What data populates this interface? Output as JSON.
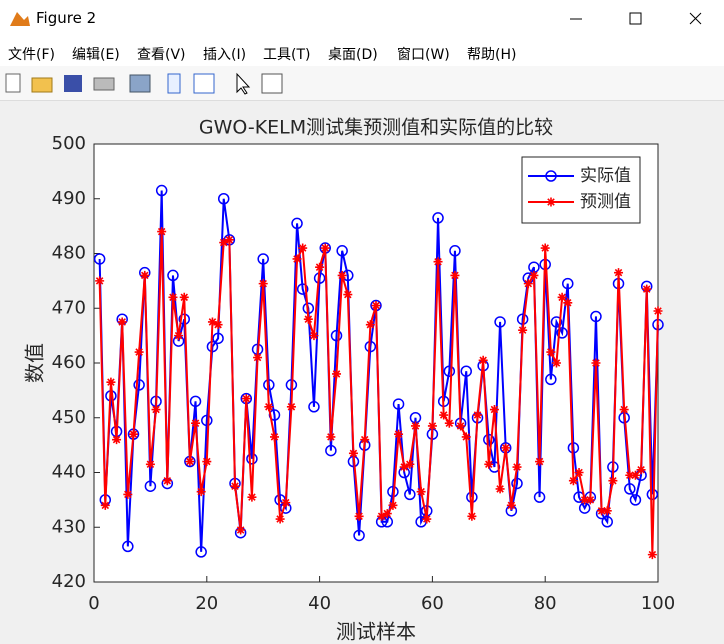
{
  "window": {
    "title": "Figure 2",
    "menu": [
      "文件(F)",
      "编辑(E)",
      "查看(V)",
      "插入(I)",
      "工具(T)",
      "桌面(D)",
      "窗口(W)",
      "帮助(H)"
    ]
  },
  "chart_data": {
    "type": "line",
    "title": "GWO-KELM测试集预测值和实际值的比较",
    "x_label": "测试样本",
    "y_label": "数值",
    "x": [
      1,
      2,
      3,
      4,
      5,
      6,
      7,
      8,
      9,
      10,
      11,
      12,
      13,
      14,
      15,
      16,
      17,
      18,
      19,
      20,
      21,
      22,
      23,
      24,
      25,
      26,
      27,
      28,
      29,
      30,
      31,
      32,
      33,
      34,
      35,
      36,
      37,
      38,
      39,
      40,
      41,
      42,
      43,
      44,
      45,
      46,
      47,
      48,
      49,
      50,
      51,
      52,
      53,
      54,
      55,
      56,
      57,
      58,
      59,
      60,
      61,
      62,
      63,
      64,
      65,
      66,
      67,
      68,
      69,
      70,
      71,
      72,
      73,
      74,
      75,
      76,
      77,
      78,
      79,
      80,
      81,
      82,
      83,
      84,
      85,
      86,
      87,
      88,
      89,
      90,
      91,
      92,
      93,
      94,
      95,
      96,
      97,
      98,
      99,
      100
    ],
    "series": [
      {
        "name": "实际值",
        "color": "#0000ff",
        "marker": "circle",
        "values": [
          479,
          435,
          454,
          447.5,
          468,
          426.5,
          447,
          456,
          476.5,
          437.5,
          453,
          491.5,
          438,
          476,
          464,
          468,
          442,
          453,
          425.5,
          449.5,
          463,
          464.5,
          490,
          482.5,
          438,
          429,
          453.5,
          442.5,
          462.5,
          479,
          456,
          450.5,
          435,
          433.5,
          456,
          485.5,
          473.5,
          470,
          452,
          475.5,
          481,
          444,
          465,
          480.5,
          476,
          442,
          428.5,
          445,
          463,
          470.5,
          431,
          431,
          436.5,
          452.5,
          440,
          436,
          450,
          431,
          433,
          447,
          486.5,
          453,
          458.5,
          480.5,
          449,
          458.5,
          435.5,
          450,
          459.5,
          446,
          441,
          467.5,
          444.5,
          433,
          438,
          468,
          475.5,
          477.5,
          435.5,
          478,
          457,
          467.5,
          465.5,
          474.5,
          444.5,
          435.5,
          433.5,
          435.5,
          468.5,
          432.5,
          431,
          441,
          474.5,
          450,
          437,
          435,
          439.5,
          474,
          436,
          467
        ]
      },
      {
        "name": "预测值",
        "color": "#ff0000",
        "marker": "asterisk",
        "values": [
          475,
          434,
          456.5,
          446,
          467.5,
          436,
          447,
          462,
          476,
          441.5,
          451.5,
          484,
          438.5,
          472,
          465,
          472,
          442,
          449,
          436.5,
          442,
          467.5,
          467,
          482,
          482.5,
          437.5,
          429.5,
          453.5,
          435.5,
          461,
          474.5,
          452,
          446.5,
          431.5,
          434.5,
          452,
          479,
          481,
          468,
          465,
          477.5,
          481,
          446.5,
          458,
          476,
          472.5,
          443.5,
          432,
          446,
          467,
          470.5,
          432,
          432.5,
          434,
          447,
          441,
          441.5,
          448.5,
          436.5,
          431.5,
          448.5,
          478.5,
          450.5,
          449,
          476,
          448.5,
          446.5,
          432,
          450.5,
          460.5,
          441.5,
          451.5,
          437,
          444.5,
          434,
          441,
          466,
          474.5,
          476,
          442,
          481,
          462,
          460,
          472,
          471,
          438.5,
          440,
          435,
          435,
          460,
          433,
          433,
          438.5,
          476.5,
          451.5,
          439.5,
          439.5,
          440.5,
          473.5,
          425,
          469.5
        ]
      }
    ],
    "xlim": [
      0,
      100
    ],
    "xticks": [
      0,
      20,
      40,
      60,
      80,
      100
    ],
    "ylim": [
      420,
      500
    ],
    "yticks": [
      420,
      430,
      440,
      450,
      460,
      470,
      480,
      490,
      500
    ],
    "grid": false,
    "legend": "upper right"
  }
}
